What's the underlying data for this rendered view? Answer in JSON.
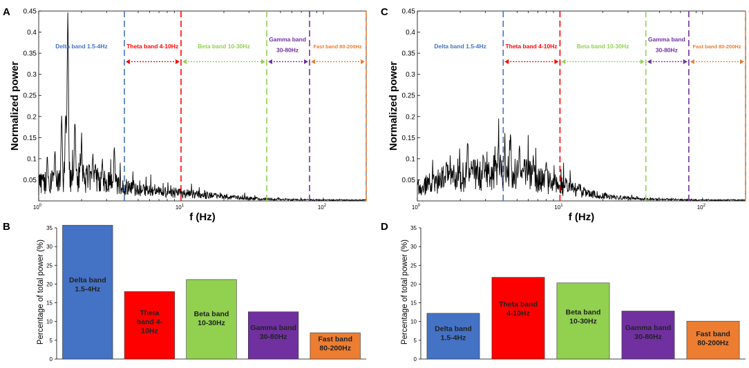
{
  "colors": {
    "delta": "#4472c4",
    "theta": "#ff0000",
    "beta": "#92d050",
    "gamma": "#7030a0",
    "fast": "#ed7d31",
    "trace": "#000000"
  },
  "panels": {
    "A": {
      "letter": "A"
    },
    "B": {
      "letter": "B"
    },
    "C": {
      "letter": "C"
    },
    "D": {
      "letter": "D"
    }
  },
  "chart_data": [
    {
      "panel": "A",
      "type": "line",
      "xscale": "log",
      "xlim": [
        1,
        200
      ],
      "ylim": [
        0,
        0.45
      ],
      "xlabel": "f (Hz)",
      "ylabel": "Normalized power",
      "xtick_labels": [
        {
          "base": "10",
          "exp": "0",
          "value": 1
        },
        {
          "base": "10",
          "exp": "1",
          "value": 10
        },
        {
          "base": "10",
          "exp": "2",
          "value": 100
        }
      ],
      "ytick_values": [
        0.05,
        0.1,
        0.15,
        0.2,
        0.25,
        0.3,
        0.35,
        0.4,
        0.45
      ],
      "ytick_labels": [
        "0.05",
        "0.1",
        "0.15",
        "0.2",
        "0.25",
        "0.3",
        "0.35",
        "0.4",
        "0.45"
      ],
      "band_lines": [
        {
          "x": 4,
          "band": "delta"
        },
        {
          "x": 10,
          "band": "theta"
        },
        {
          "x": 40,
          "band": "beta"
        },
        {
          "x": 80,
          "band": "gamma"
        },
        {
          "x": 200,
          "band": "fast"
        }
      ],
      "band_labels": [
        {
          "text": "Delta band 1.5-4Hz",
          "band": "delta",
          "x": 2.0,
          "y": 0.362
        },
        {
          "text": "Theta band 4-10Hz",
          "band": "theta",
          "x": 6.3,
          "y": 0.362
        },
        {
          "text": "Beta band 10-30Hz",
          "band": "beta",
          "x": 20,
          "y": 0.362
        },
        {
          "text": "Gamma band",
          "band": "gamma",
          "x": 56,
          "y": 0.378
        },
        {
          "text": "30-80Hz",
          "band": "gamma",
          "x": 56,
          "y": 0.353
        },
        {
          "text": "Fast band 80-200Hz",
          "band": "fast",
          "x": 126,
          "y": 0.362
        }
      ],
      "band_arrows": [
        {
          "from": 4,
          "to": 10,
          "band": "theta"
        },
        {
          "from": 10,
          "to": 40,
          "band": "beta"
        },
        {
          "from": 40,
          "to": 80,
          "band": "gamma"
        },
        {
          "from": 80,
          "to": 200,
          "band": "fast"
        }
      ],
      "arrow_y": 0.33,
      "series": [
        {
          "name": "spectrum",
          "peaks": [
            {
              "f": 1.6,
              "p": 0.45
            },
            {
              "f": 1.55,
              "p": 0.24
            },
            {
              "f": 1.8,
              "p": 0.2
            },
            {
              "f": 1.45,
              "p": 0.21
            },
            {
              "f": 1.3,
              "p": 0.12
            },
            {
              "f": 1.15,
              "p": 0.11
            },
            {
              "f": 2.0,
              "p": 0.14
            },
            {
              "f": 2.4,
              "p": 0.12
            },
            {
              "f": 3.4,
              "p": 0.13
            },
            {
              "f": 2.8,
              "p": 0.1
            }
          ],
          "baseline": [
            {
              "f": 1,
              "p": 0.04
            },
            {
              "f": 1.8,
              "p": 0.06
            },
            {
              "f": 3,
              "p": 0.045
            },
            {
              "f": 5,
              "p": 0.025
            },
            {
              "f": 10,
              "p": 0.018
            },
            {
              "f": 20,
              "p": 0.01
            },
            {
              "f": 40,
              "p": 0.004
            },
            {
              "f": 100,
              "p": 0.002
            },
            {
              "f": 200,
              "p": 0.002
            }
          ]
        }
      ]
    },
    {
      "panel": "C",
      "type": "line",
      "xscale": "log",
      "xlim": [
        1,
        200
      ],
      "ylim": [
        0,
        0.45
      ],
      "xlabel": "f (Hz)",
      "ylabel": "Normalized power",
      "xtick_labels": [
        {
          "base": "10",
          "exp": "0",
          "value": 1
        },
        {
          "base": "10",
          "exp": "1",
          "value": 10
        },
        {
          "base": "10",
          "exp": "2",
          "value": 100
        }
      ],
      "ytick_values": [
        0.05,
        0.1,
        0.15,
        0.2,
        0.25,
        0.3,
        0.35,
        0.4,
        0.45
      ],
      "ytick_labels": [
        "0.05",
        "0.1",
        "0.15",
        "0.2",
        "0.25",
        "0.3",
        "0.35",
        "0.4",
        "0.45"
      ],
      "band_lines": [
        {
          "x": 4,
          "band": "delta"
        },
        {
          "x": 10,
          "band": "theta"
        },
        {
          "x": 40,
          "band": "beta"
        },
        {
          "x": 80,
          "band": "gamma"
        },
        {
          "x": 200,
          "band": "fast"
        }
      ],
      "band_labels": [
        {
          "text": "Delta band 1.5-4Hz",
          "band": "delta",
          "x": 2.0,
          "y": 0.362
        },
        {
          "text": "Theta band 4-10Hz",
          "band": "theta",
          "x": 6.3,
          "y": 0.362
        },
        {
          "text": "Beta band 10-30Hz",
          "band": "beta",
          "x": 20,
          "y": 0.362
        },
        {
          "text": "Gamma band",
          "band": "gamma",
          "x": 56,
          "y": 0.378
        },
        {
          "text": "30-80Hz",
          "band": "gamma",
          "x": 56,
          "y": 0.353
        },
        {
          "text": "Fast band 80-200Hz",
          "band": "fast",
          "x": 126,
          "y": 0.362
        }
      ],
      "band_arrows": [
        {
          "from": 4,
          "to": 10,
          "band": "theta"
        },
        {
          "from": 10,
          "to": 40,
          "band": "beta"
        },
        {
          "from": 40,
          "to": 80,
          "band": "gamma"
        },
        {
          "from": 80,
          "to": 200,
          "band": "fast"
        }
      ],
      "arrow_y": 0.33,
      "series": [
        {
          "name": "spectrum",
          "peaks": [
            {
              "f": 2.25,
              "p": 0.16
            },
            {
              "f": 4.5,
              "p": 0.17
            },
            {
              "f": 3.7,
              "p": 0.15
            },
            {
              "f": 5.2,
              "p": 0.14
            },
            {
              "f": 1.3,
              "p": 0.07
            },
            {
              "f": 1.6,
              "p": 0.1
            },
            {
              "f": 2.9,
              "p": 0.12
            },
            {
              "f": 6.5,
              "p": 0.11
            },
            {
              "f": 8,
              "p": 0.1
            },
            {
              "f": 4.1,
              "p": 0.13
            },
            {
              "f": 11,
              "p": 0.06
            }
          ],
          "baseline": [
            {
              "f": 1,
              "p": 0.03
            },
            {
              "f": 1.5,
              "p": 0.05
            },
            {
              "f": 2.5,
              "p": 0.06
            },
            {
              "f": 4,
              "p": 0.07
            },
            {
              "f": 6,
              "p": 0.06
            },
            {
              "f": 10,
              "p": 0.035
            },
            {
              "f": 15,
              "p": 0.02
            },
            {
              "f": 25,
              "p": 0.008
            },
            {
              "f": 40,
              "p": 0.004
            },
            {
              "f": 100,
              "p": 0.002
            },
            {
              "f": 200,
              "p": 0.002
            }
          ]
        }
      ]
    },
    {
      "panel": "B",
      "type": "bar",
      "ylabel": "Percentage of total power (%)",
      "ylim": [
        0,
        35
      ],
      "yticks": [
        "0",
        "5",
        "10",
        "15",
        "20",
        "25",
        "30",
        "35"
      ],
      "categories": [
        {
          "lines": [
            "Delta band",
            "1.5-4Hz"
          ],
          "band": "delta",
          "label_y": 20
        },
        {
          "lines": [
            "Theta",
            "band 4-",
            "10Hz"
          ],
          "band": "theta",
          "label_y": 10
        },
        {
          "lines": [
            "Beta band",
            "10-30Hz"
          ],
          "band": "beta",
          "label_y": 11
        },
        {
          "lines": [
            "Gamma band",
            "30-80Hz"
          ],
          "band": "gamma",
          "label_y": 7.3
        },
        {
          "lines": [
            "Fast band",
            "80-200Hz"
          ],
          "band": "fast",
          "label_y": 4.2
        }
      ],
      "values": [
        35.7,
        18,
        21.2,
        12.6,
        7
      ]
    },
    {
      "panel": "D",
      "type": "bar",
      "ylabel": "Percentage of total power (%)",
      "ylim": [
        0,
        35
      ],
      "yticks": [
        "0",
        "5",
        "10",
        "15",
        "20",
        "25",
        "30",
        "35"
      ],
      "categories": [
        {
          "lines": [
            "Delta band",
            "1.5-4Hz"
          ],
          "band": "delta",
          "label_y": 7
        },
        {
          "lines": [
            "Theta band",
            "4-10Hz"
          ],
          "band": "theta",
          "label_y": 13.5
        },
        {
          "lines": [
            "Beta band",
            "10-30Hz"
          ],
          "band": "beta",
          "label_y": 11.4
        },
        {
          "lines": [
            "Gamma band",
            "30-80Hz"
          ],
          "band": "gamma",
          "label_y": 7.3
        },
        {
          "lines": [
            "Fast band",
            "80-200Hz"
          ],
          "band": "fast",
          "label_y": 5.6
        }
      ],
      "values": [
        12.2,
        21.8,
        20.3,
        12.8,
        10.1
      ]
    }
  ]
}
